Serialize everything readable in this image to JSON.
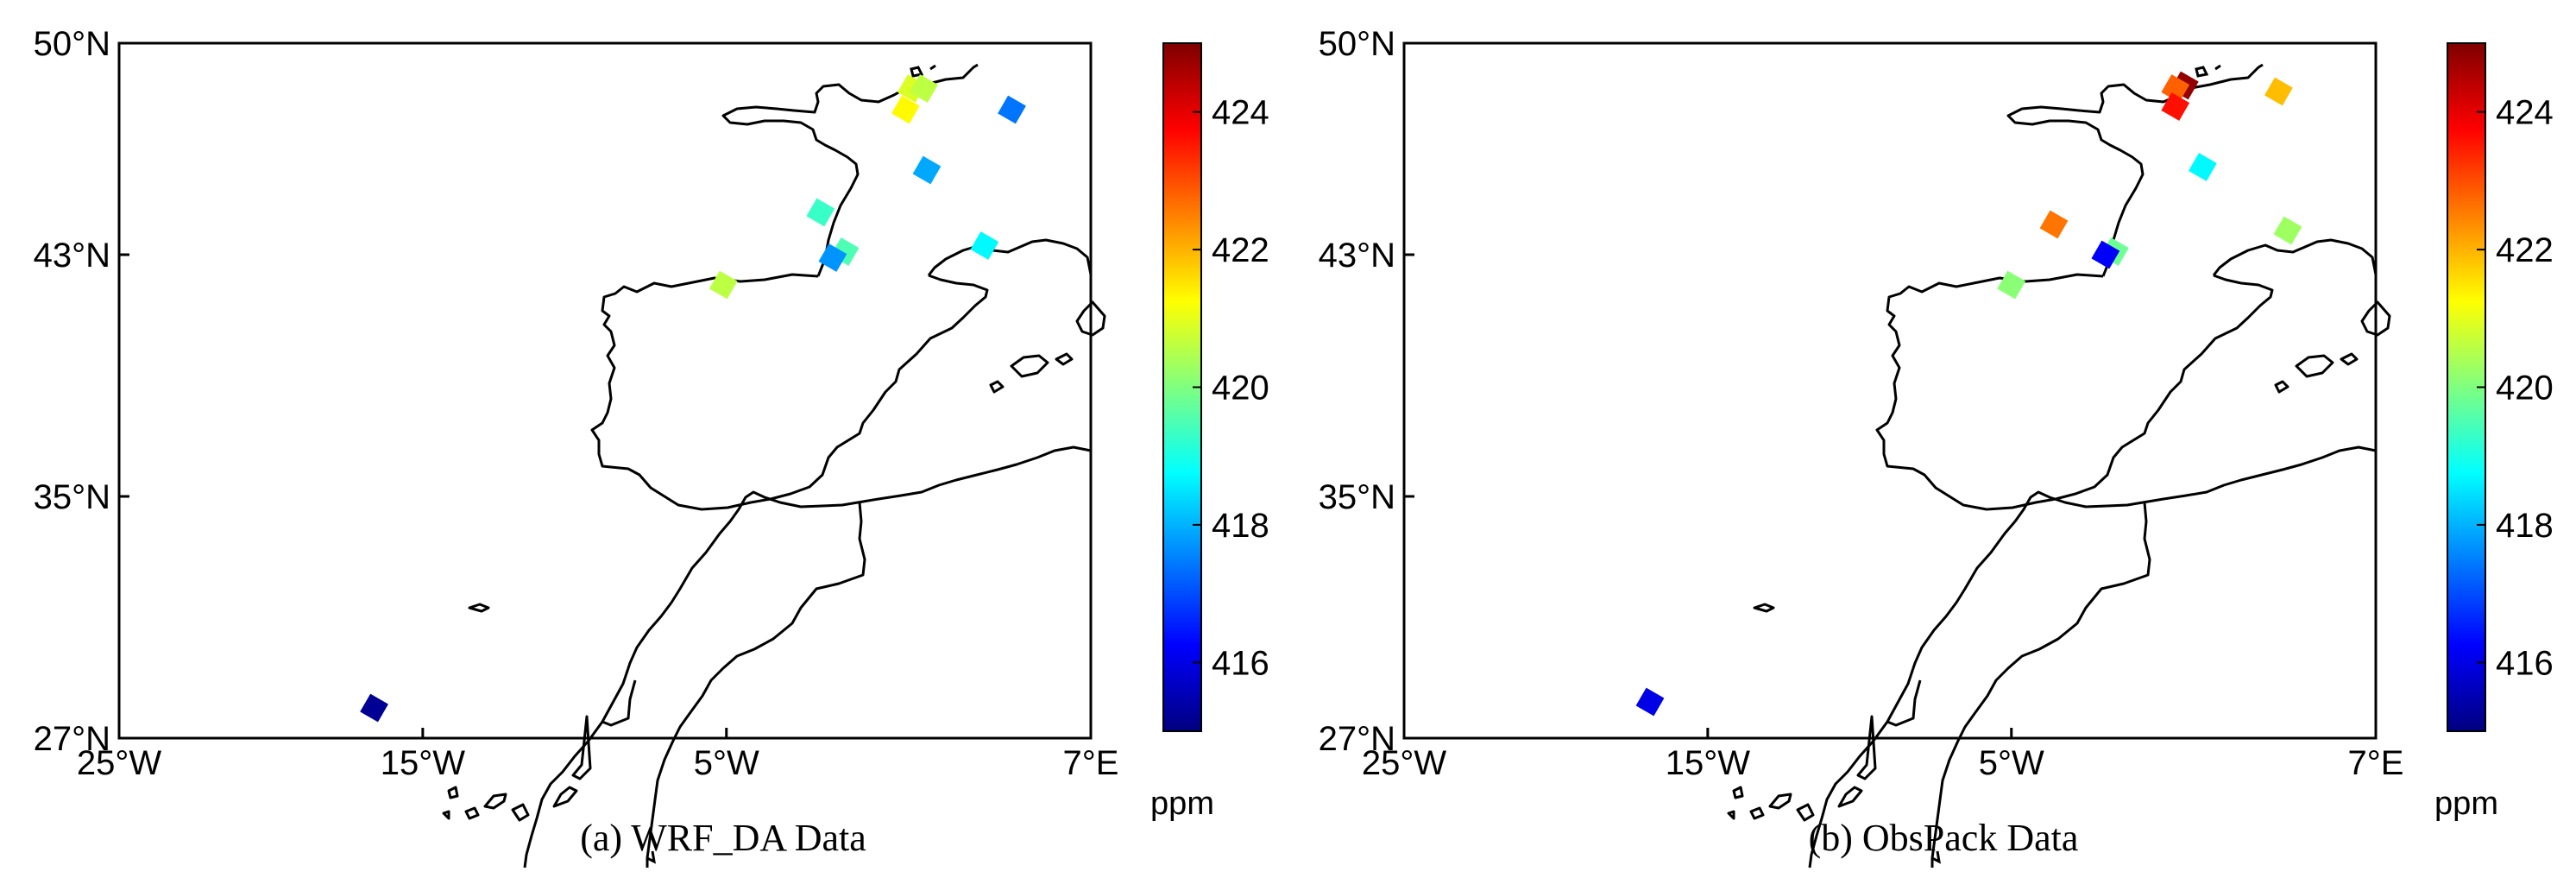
{
  "colorbar": {
    "unit": "ppm",
    "min": 415,
    "max": 425,
    "ticks": [
      416,
      418,
      420,
      422,
      424
    ],
    "colormap": "jet"
  },
  "axes": {
    "x_ticks": [
      {
        "value": -25,
        "label": "25°W"
      },
      {
        "value": -15,
        "label": "15°W"
      },
      {
        "value": -5,
        "label": "5°W"
      },
      {
        "value": 7,
        "label": "7°E"
      }
    ],
    "y_ticks": [
      {
        "value": 27,
        "label": "27°N"
      },
      {
        "value": 35,
        "label": "35°N"
      },
      {
        "value": 43,
        "label": "43°N"
      },
      {
        "value": 50,
        "label": "50°N"
      }
    ],
    "lon_range": [
      -25,
      7
    ],
    "lat_range": [
      27,
      50
    ]
  },
  "panels": [
    {
      "caption": "(a) WRF_DA Data",
      "stations": [
        {
          "lon": 1.1,
          "lat": 48.5,
          "co2": 420.9
        },
        {
          "lon": 1.5,
          "lat": 48.5,
          "co2": 420.6
        },
        {
          "lon": 0.9,
          "lat": 47.8,
          "co2": 421.3
        },
        {
          "lon": 4.4,
          "lat": 47.8,
          "co2": 417.4
        },
        {
          "lon": 1.6,
          "lat": 45.8,
          "co2": 417.9
        },
        {
          "lon": -1.9,
          "lat": 44.4,
          "co2": 419.3
        },
        {
          "lon": -1.1,
          "lat": 43.1,
          "co2": 419.5
        },
        {
          "lon": -1.5,
          "lat": 42.9,
          "co2": 417.7
        },
        {
          "lon": 3.5,
          "lat": 43.3,
          "co2": 418.7
        },
        {
          "lon": -5.1,
          "lat": 42.0,
          "co2": 420.6
        },
        {
          "lon": -16.6,
          "lat": 28.0,
          "co2": 415.2
        }
      ]
    },
    {
      "caption": "(b) ObsPack Data",
      "stations": [
        {
          "lon": 0.7,
          "lat": 48.6,
          "co2": 424.8
        },
        {
          "lon": 0.4,
          "lat": 48.5,
          "co2": 422.8
        },
        {
          "lon": 0.4,
          "lat": 47.9,
          "co2": 423.6
        },
        {
          "lon": 3.8,
          "lat": 48.4,
          "co2": 421.9
        },
        {
          "lon": 1.3,
          "lat": 45.9,
          "co2": 418.7
        },
        {
          "lon": -3.6,
          "lat": 44.0,
          "co2": 422.6
        },
        {
          "lon": -1.6,
          "lat": 43.1,
          "co2": 419.8
        },
        {
          "lon": -1.9,
          "lat": 43.0,
          "co2": 416.2
        },
        {
          "lon": 4.1,
          "lat": 43.8,
          "co2": 420.3
        },
        {
          "lon": -5.0,
          "lat": 42.0,
          "co2": 420.1
        },
        {
          "lon": -16.9,
          "lat": 28.2,
          "co2": 416.0
        }
      ]
    }
  ]
}
